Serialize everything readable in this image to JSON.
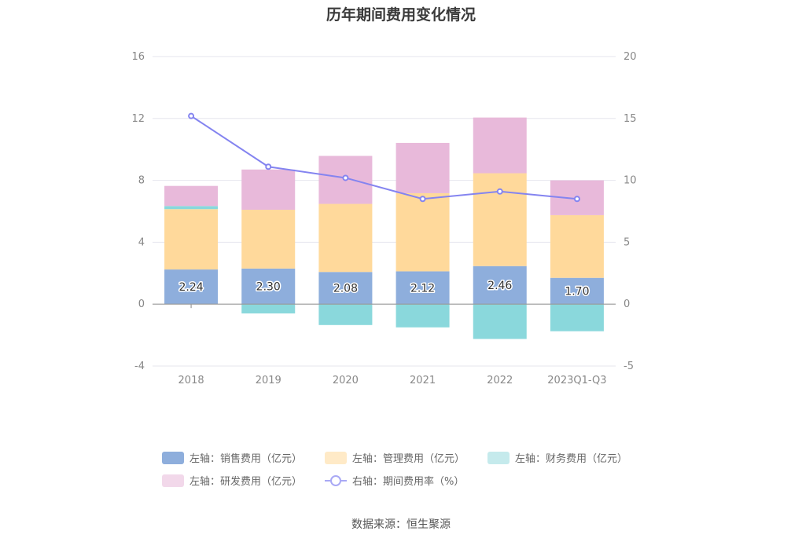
{
  "chart_data": {
    "type": "bar",
    "title": "历年期间费用变化情况",
    "categories": [
      "2018",
      "2019",
      "2020",
      "2021",
      "2022",
      "2023Q1-Q3"
    ],
    "stacked": true,
    "left_axis": {
      "min": -4,
      "max": 16,
      "ticks": [
        -4,
        0,
        4,
        8,
        12,
        16
      ]
    },
    "right_axis": {
      "min": -5,
      "max": 20,
      "ticks": [
        -5,
        0,
        5,
        10,
        15,
        20
      ]
    },
    "series": [
      {
        "name": "左轴：销售费用（亿元）",
        "axis": "left",
        "color": "#8eaedc",
        "values": [
          2.24,
          2.3,
          2.08,
          2.12,
          2.46,
          1.7
        ],
        "show_labels": true
      },
      {
        "name": "左轴：管理费用（亿元）",
        "axis": "left",
        "color": "#ffd99b",
        "values": [
          3.9,
          3.8,
          4.4,
          5.05,
          6.0,
          4.05
        ]
      },
      {
        "name": "左轴：财务费用（亿元）",
        "axis": "left",
        "color": "#8ad8dc",
        "values": [
          0.2,
          -0.6,
          -1.35,
          -1.5,
          -2.25,
          -1.75
        ]
      },
      {
        "name": "左轴：研发费用（亿元）",
        "axis": "left",
        "color": "#e8b9da",
        "values": [
          1.3,
          2.6,
          3.1,
          3.25,
          3.6,
          2.25
        ]
      },
      {
        "name": "右轴：期间费用率（%）",
        "axis": "right",
        "type": "line",
        "color": "#8484f0",
        "values": [
          15.2,
          11.1,
          10.2,
          8.5,
          9.1,
          8.5
        ]
      }
    ],
    "legend_position": "bottom"
  },
  "legend": [
    {
      "label": "左轴：销售费用（亿元）",
      "color": "#8eaedc",
      "kind": "box"
    },
    {
      "label": "左轴：管理费用（亿元）",
      "color": "#ffeac7",
      "kind": "box"
    },
    {
      "label": "左轴：财务费用（亿元）",
      "color": "#c5eaec",
      "kind": "box"
    },
    {
      "label": "左轴：研发费用（亿元）",
      "color": "#f2d8ea",
      "kind": "box"
    },
    {
      "label": "右轴：期间费用率（%）",
      "color": "#a9a9f5",
      "kind": "line"
    }
  ],
  "source": "数据来源：恒生聚源"
}
